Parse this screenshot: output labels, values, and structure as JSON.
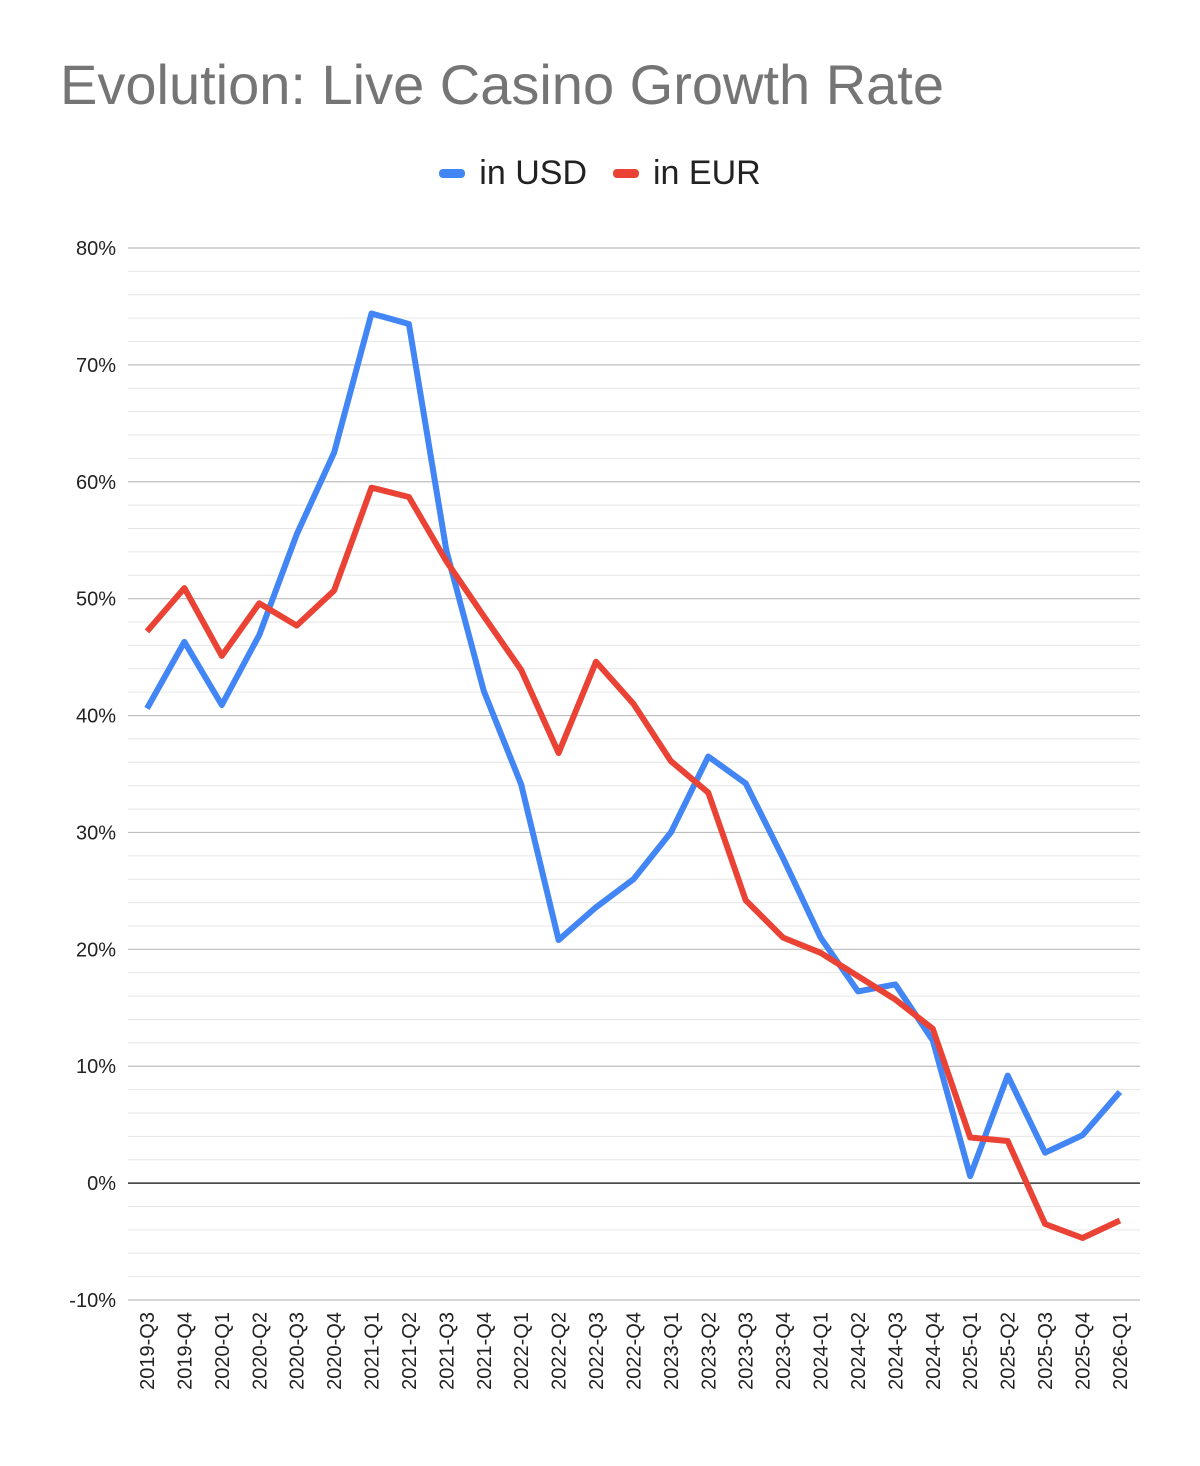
{
  "chart_data": {
    "type": "line",
    "title": "Evolution: Live Casino Growth Rate",
    "xlabel": "",
    "ylabel": "",
    "ylim": [
      -10,
      80
    ],
    "y_ticks": [
      -10,
      0,
      10,
      20,
      30,
      40,
      50,
      60,
      70,
      80
    ],
    "y_tick_labels": [
      "-10%",
      "0%",
      "10%",
      "20%",
      "30%",
      "40%",
      "50%",
      "60%",
      "70%",
      "80%"
    ],
    "legend_position": "top-center",
    "grid": true,
    "categories": [
      "2019-Q3",
      "2019-Q4",
      "2020-Q1",
      "2020-Q2",
      "2020-Q3",
      "2020-Q4",
      "2021-Q1",
      "2021-Q2",
      "2021-Q3",
      "2021-Q4",
      "2022-Q1",
      "2022-Q2",
      "2022-Q3",
      "2022-Q4",
      "2023-Q1",
      "2023-Q2",
      "2023-Q3",
      "2023-Q4",
      "2024-Q1",
      "2024-Q2",
      "2024-Q3",
      "2024-Q4",
      "2025-Q1",
      "2025-Q2",
      "2025-Q3",
      "2025-Q4",
      "2026-Q1"
    ],
    "series": [
      {
        "name": "in USD",
        "color": "#4285f4",
        "values": [
          40.6,
          46.3,
          40.9,
          46.9,
          55.5,
          62.5,
          74.4,
          73.5,
          54.1,
          42.1,
          34.1,
          20.8,
          23.6,
          26.0,
          30.0,
          36.5,
          34.2,
          27.8,
          21.0,
          16.4,
          17.0,
          12.2,
          0.6,
          9.2,
          2.6,
          4.1,
          7.8
        ]
      },
      {
        "name": "in EUR",
        "color": "#ea4335",
        "values": [
          47.2,
          50.9,
          45.1,
          49.6,
          47.7,
          50.7,
          59.5,
          58.7,
          53.2,
          48.5,
          43.9,
          36.8,
          44.6,
          41.0,
          36.1,
          33.4,
          24.2,
          21.0,
          19.7,
          17.7,
          15.7,
          13.2,
          3.9,
          3.6,
          -3.5,
          -4.7,
          -3.2
        ]
      }
    ]
  },
  "legend": {
    "usd_label": "in USD",
    "eur_label": "in EUR"
  }
}
